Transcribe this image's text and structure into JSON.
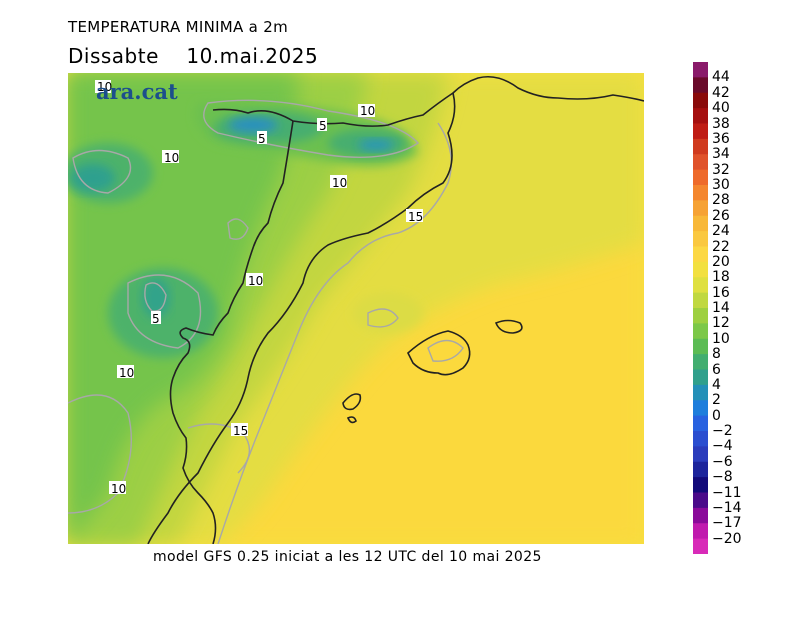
{
  "header": {
    "title": "TEMPERATURA MINIMA a 2m",
    "day": "Dissabte",
    "date": "10.mai.2025"
  },
  "logo": {
    "text": "ara.cat"
  },
  "footer": {
    "caption": "model GFS 0.25 iniciat a les 12 UTC del 10 mai 2025"
  },
  "contour_labels": [
    "10",
    "10",
    "5",
    "5",
    "10",
    "10",
    "15",
    "10",
    "5",
    "10",
    "15",
    "10"
  ],
  "legend": {
    "labels": [
      "44",
      "42",
      "40",
      "38",
      "36",
      "34",
      "32",
      "30",
      "28",
      "26",
      "24",
      "22",
      "20",
      "18",
      "16",
      "14",
      "12",
      "10",
      "8",
      "6",
      "4",
      "2",
      "0",
      "−2",
      "−4",
      "−6",
      "−8",
      "−11",
      "−14",
      "−17",
      "−20"
    ],
    "colors": [
      "#8a1a6a",
      "#6a0a2a",
      "#8a0a0a",
      "#a50f0f",
      "#bf1c14",
      "#d03a1e",
      "#e0522a",
      "#ee6a2a",
      "#f4862e",
      "#f6a234",
      "#f8b838",
      "#fac840",
      "#fcd844",
      "#f2e040",
      "#dfe040",
      "#c0d840",
      "#9ed040",
      "#7cc848",
      "#5cbc54",
      "#42ae70",
      "#30a08c",
      "#2490b8",
      "#1e7edc",
      "#2862e0",
      "#2a4ed0",
      "#2a3cbc",
      "#1c249c",
      "#120a7a",
      "#4a0a8a",
      "#8a0a9a",
      "#c01aae",
      "#d82ab8"
    ]
  }
}
